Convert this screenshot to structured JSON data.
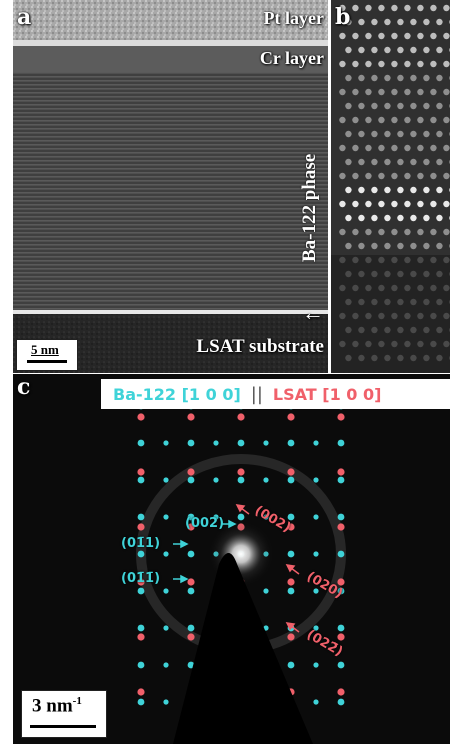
{
  "panels": {
    "a": {
      "label": "a",
      "layers": {
        "pt": "Pt layer",
        "cr": "Cr layer",
        "ba122": "Ba-122 phase",
        "substrate": "LSAT substrate"
      },
      "scalebar": "5 nm",
      "arrow": "←"
    },
    "b": {
      "label": "b"
    },
    "c": {
      "label": "c",
      "legend": {
        "ba122": "Ba-122 [1 0 0]",
        "separator": "||",
        "lsat": "LSAT [1 0 0]"
      },
      "indices_cyan": [
        "(002)",
        "(01̄1)",
        "(01̄1̄)"
      ],
      "indices_red": [
        "(002)",
        "(020)",
        "(022̄)"
      ],
      "scalebar": "3 nm",
      "scalebar_sup": "-1"
    }
  },
  "colors": {
    "cyan": "#3fd3d8",
    "red": "#f0606a"
  }
}
